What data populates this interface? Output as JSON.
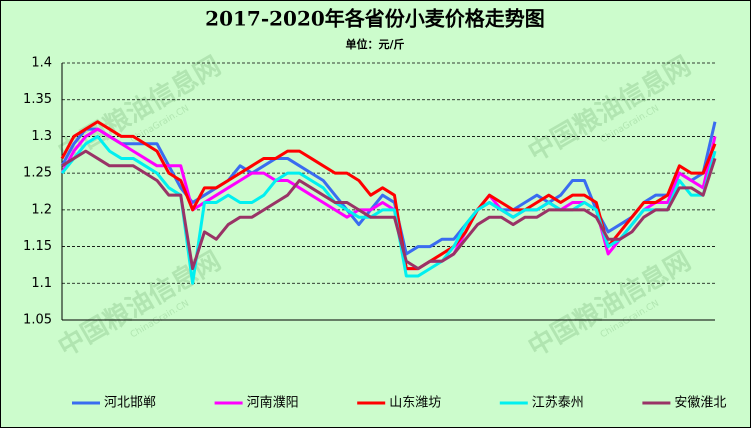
{
  "chart_data": {
    "type": "line",
    "title": "2017-2020年各省份小麦价格走势图",
    "subtitle": "单位：元/斤",
    "watermark": "中国粮油信息网",
    "watermark_sub": "ChinaGrain.CN",
    "categories": [
      null,
      null,
      null,
      null,
      null,
      null,
      null,
      null,
      null,
      null,
      null,
      null,
      null,
      null,
      null,
      null,
      null,
      null,
      null,
      null,
      null,
      null,
      null,
      null,
      null,
      null,
      null,
      null,
      null,
      null,
      null,
      null,
      null,
      null,
      null,
      null,
      null,
      null,
      null,
      null,
      null,
      null,
      null,
      null,
      null,
      null,
      null,
      null,
      null,
      null,
      null,
      null,
      null,
      null,
      null,
      null
    ],
    "ylim": [
      1.05,
      1.4
    ],
    "yticks": [
      1.05,
      1.1,
      1.15,
      1.2,
      1.25,
      1.3,
      1.35,
      1.4
    ],
    "grid": true,
    "legend": "bottom",
    "series": [
      {
        "name": "河北邯郸",
        "color": "#3a6cf0",
        "values": [
          1.26,
          1.29,
          1.31,
          1.31,
          1.3,
          1.29,
          1.29,
          1.29,
          1.29,
          1.26,
          1.23,
          1.21,
          1.22,
          1.23,
          1.24,
          1.26,
          1.25,
          1.26,
          1.27,
          1.27,
          1.26,
          1.25,
          1.24,
          1.22,
          1.2,
          1.18,
          1.2,
          1.22,
          1.21,
          1.14,
          1.15,
          1.15,
          1.16,
          1.16,
          1.18,
          1.2,
          1.21,
          1.2,
          1.2,
          1.21,
          1.22,
          1.21,
          1.22,
          1.24,
          1.24,
          1.2,
          1.17,
          1.18,
          1.19,
          1.21,
          1.22,
          1.22,
          1.25,
          1.24,
          1.25,
          1.32
        ]
      },
      {
        "name": "河南濮阳",
        "color": "#ff00ff",
        "values": [
          1.25,
          1.28,
          1.3,
          1.31,
          1.3,
          1.29,
          1.28,
          1.27,
          1.26,
          1.26,
          1.26,
          1.2,
          1.21,
          1.22,
          1.23,
          1.24,
          1.25,
          1.25,
          1.24,
          1.24,
          1.23,
          1.22,
          1.21,
          1.2,
          1.19,
          1.2,
          1.2,
          1.21,
          1.2,
          1.12,
          1.12,
          1.13,
          1.13,
          1.14,
          1.17,
          1.2,
          1.22,
          1.2,
          1.19,
          1.2,
          1.2,
          1.21,
          1.2,
          1.21,
          1.21,
          1.2,
          1.14,
          1.16,
          1.18,
          1.2,
          1.21,
          1.21,
          1.25,
          1.24,
          1.23,
          1.3
        ]
      },
      {
        "name": "山东潍坊",
        "color": "#ff0000",
        "values": [
          1.27,
          1.3,
          1.31,
          1.32,
          1.31,
          1.3,
          1.3,
          1.29,
          1.28,
          1.25,
          1.24,
          1.2,
          1.23,
          1.23,
          1.24,
          1.25,
          1.26,
          1.27,
          1.27,
          1.28,
          1.28,
          1.27,
          1.26,
          1.25,
          1.25,
          1.24,
          1.22,
          1.23,
          1.22,
          1.12,
          1.12,
          1.13,
          1.14,
          1.15,
          1.17,
          1.2,
          1.22,
          1.21,
          1.2,
          1.2,
          1.21,
          1.22,
          1.21,
          1.22,
          1.22,
          1.21,
          1.15,
          1.17,
          1.19,
          1.21,
          1.21,
          1.22,
          1.26,
          1.25,
          1.25,
          1.29
        ]
      },
      {
        "name": "江苏泰州",
        "color": "#00f0f0",
        "values": [
          1.25,
          1.27,
          1.29,
          1.3,
          1.28,
          1.27,
          1.27,
          1.26,
          1.25,
          1.23,
          1.22,
          1.1,
          1.21,
          1.21,
          1.22,
          1.21,
          1.21,
          1.22,
          1.24,
          1.25,
          1.25,
          1.24,
          1.23,
          1.21,
          1.2,
          1.19,
          1.19,
          1.2,
          1.2,
          1.11,
          1.11,
          1.12,
          1.13,
          1.15,
          1.18,
          1.2,
          1.21,
          1.2,
          1.19,
          1.2,
          1.2,
          1.21,
          1.2,
          1.2,
          1.21,
          1.2,
          1.15,
          1.16,
          1.18,
          1.2,
          1.2,
          1.2,
          1.24,
          1.22,
          1.22,
          1.28
        ]
      },
      {
        "name": "安徽淮北",
        "color": "#993366",
        "values": [
          1.26,
          1.27,
          1.28,
          1.27,
          1.26,
          1.26,
          1.26,
          1.25,
          1.24,
          1.22,
          1.22,
          1.12,
          1.17,
          1.16,
          1.18,
          1.19,
          1.19,
          1.2,
          1.21,
          1.22,
          1.24,
          1.23,
          1.22,
          1.21,
          1.21,
          1.2,
          1.19,
          1.19,
          1.19,
          1.13,
          1.12,
          1.13,
          1.13,
          1.14,
          1.16,
          1.18,
          1.19,
          1.19,
          1.18,
          1.19,
          1.19,
          1.2,
          1.2,
          1.2,
          1.2,
          1.19,
          1.16,
          1.16,
          1.17,
          1.19,
          1.2,
          1.2,
          1.23,
          1.23,
          1.22,
          1.27
        ]
      }
    ]
  }
}
